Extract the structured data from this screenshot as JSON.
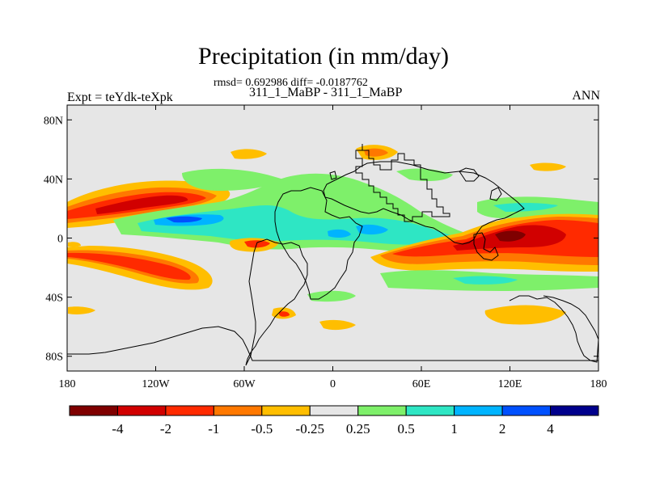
{
  "title": "Precipitation (in mm/day)",
  "stats_text": "rmsd= 0.692986 diff= -0.0187762",
  "case_text": "311_1_MaBP - 311_1_MaBP",
  "expt_text": "Expt = teYdk-teXpk",
  "season": "ANN",
  "map": {
    "projection": "cylindrical-equidistant",
    "lon_range": [
      -180,
      180
    ],
    "lat_range": [
      -90,
      90
    ],
    "background_color": "#e6e6e6",
    "lon_ticks": [
      {
        "value": -180,
        "label": "180"
      },
      {
        "value": -120,
        "label": "120W"
      },
      {
        "value": -60,
        "label": "60W"
      },
      {
        "value": 0,
        "label": "0"
      },
      {
        "value": 60,
        "label": "60E"
      },
      {
        "value": 120,
        "label": "120E"
      },
      {
        "value": 180,
        "label": "180"
      }
    ],
    "lat_ticks": [
      {
        "value": 80,
        "label": "80N"
      },
      {
        "value": 40,
        "label": "40N"
      },
      {
        "value": 0,
        "label": "0"
      },
      {
        "value": -40,
        "label": "40S"
      },
      {
        "value": -80,
        "label": "80S"
      }
    ]
  },
  "colorbar": {
    "colors": [
      "#7f0000",
      "#d10000",
      "#ff2a00",
      "#ff7800",
      "#ffbe00",
      "#e6e6e6",
      "#7ef06a",
      "#2ee6c4",
      "#00b4ff",
      "#0050ff",
      "#00008c"
    ],
    "labels": [
      "-4",
      "-2",
      "-1",
      "-0.5",
      "-0.25",
      "0.25",
      "0.5",
      "1",
      "2",
      "4"
    ]
  }
}
